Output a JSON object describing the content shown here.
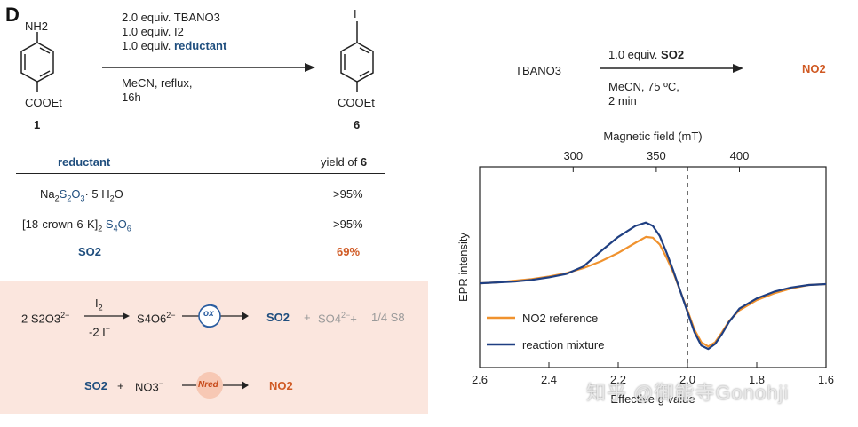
{
  "panel_label": "D",
  "scheme1": {
    "reactant_top": "NH2",
    "reactant_bottom": "COOEt",
    "reactant_number": "1",
    "cond1": "2.0 equiv. TBANO3",
    "cond2": "1.0 equiv. I2",
    "cond3_prefix": "1.0 equiv.",
    "cond3_highlight": "reductant",
    "cond4": "MeCN, reflux,",
    "cond5": "16h",
    "product_top": "I",
    "product_bottom": "COOEt",
    "product_number": "6"
  },
  "table": {
    "col1_header": "reductant",
    "col2_header_prefix": "yield of",
    "col2_header_bold": "6",
    "rows": [
      {
        "reductant_a": "Na",
        "reductant_b": "2",
        "reductant_c": "S",
        "reductant_d": "2",
        "reductant_e": "O",
        "reductant_f": "3",
        "reductant_g": "· 5 H",
        "reductant_h": "2",
        "reductant_i": "O",
        "yield": ">95%"
      },
      {
        "reductant_a": "[18-crown-6-K]",
        "reductant_b": "2",
        "reductant_c": "S",
        "reductant_d": "4",
        "reductant_e": "O",
        "reductant_f": "6",
        "yield": ">95%"
      },
      {
        "reductant": "SO2",
        "yield": "69%"
      }
    ]
  },
  "mechanism": {
    "line1_left": "2 S2O3",
    "line1_left_sup": "2−",
    "arrow1_top": "I2",
    "arrow1_bottom": "-2 I",
    "arrow1_bottom_sup": "−",
    "intermediate": "S4O6",
    "intermediate_sup": "2−",
    "ox_label": "ox",
    "so2": "SO2",
    "plus1": "+",
    "so4": "SO4",
    "so4_sup": "2−",
    "plus2": "+",
    "s8": "1/4 S8",
    "line2_so2": "SO2",
    "line2_plus": "+",
    "line2_no3": "NO3",
    "line2_no3_sup": "−",
    "nred_label": "Nred",
    "line2_product": "NO2"
  },
  "scheme2": {
    "reactant": "TBANO3",
    "cond1_prefix": "1.0 equiv.",
    "cond1_bold": "SO2",
    "cond2": "MeCN, 75 ºC,",
    "cond3": "2 min",
    "product": "NO2"
  },
  "chart_data": {
    "type": "line",
    "title": "",
    "top_axis_label": "Magnetic field (mT)",
    "top_ticks": [
      "300",
      "350",
      "400"
    ],
    "xlabel": "Effective g value",
    "x_ticks": [
      "2.6",
      "2.4",
      "2.2",
      "2.0",
      "1.8",
      "1.6"
    ],
    "xlim": [
      2.6,
      1.6
    ],
    "ylabel": "EPR intensity",
    "dashed_line_at": 2.0,
    "legend": [
      "NO2 reference",
      "reaction mixture"
    ],
    "legend_position": "bottom-left",
    "colors": {
      "NO2 reference": "#f0922e",
      "reaction mixture": "#1f3f82"
    },
    "series": [
      {
        "name": "NO2 reference",
        "x": [
          2.6,
          2.55,
          2.5,
          2.45,
          2.4,
          2.35,
          2.3,
          2.25,
          2.2,
          2.15,
          2.12,
          2.1,
          2.08,
          2.06,
          2.04,
          2.02,
          2.0,
          1.98,
          1.96,
          1.94,
          1.92,
          1.9,
          1.88,
          1.85,
          1.8,
          1.75,
          1.7,
          1.65,
          1.6
        ],
        "values": [
          0.0,
          0.01,
          0.03,
          0.05,
          0.08,
          0.12,
          0.18,
          0.26,
          0.36,
          0.48,
          0.55,
          0.54,
          0.46,
          0.3,
          0.12,
          -0.1,
          -0.32,
          -0.55,
          -0.7,
          -0.75,
          -0.7,
          -0.58,
          -0.45,
          -0.32,
          -0.2,
          -0.12,
          -0.06,
          -0.02,
          -0.01
        ]
      },
      {
        "name": "reaction mixture",
        "x": [
          2.6,
          2.55,
          2.5,
          2.45,
          2.4,
          2.35,
          2.3,
          2.25,
          2.2,
          2.15,
          2.12,
          2.1,
          2.08,
          2.06,
          2.04,
          2.02,
          2.0,
          1.98,
          1.96,
          1.94,
          1.92,
          1.9,
          1.88,
          1.85,
          1.8,
          1.75,
          1.7,
          1.65,
          1.6
        ],
        "values": [
          0.0,
          0.01,
          0.02,
          0.04,
          0.07,
          0.11,
          0.2,
          0.38,
          0.55,
          0.68,
          0.72,
          0.68,
          0.56,
          0.36,
          0.14,
          -0.1,
          -0.34,
          -0.58,
          -0.74,
          -0.78,
          -0.72,
          -0.6,
          -0.46,
          -0.3,
          -0.18,
          -0.1,
          -0.05,
          -0.02,
          -0.01
        ]
      }
    ]
  },
  "watermark": "知乎 @御能寺Gonohji"
}
